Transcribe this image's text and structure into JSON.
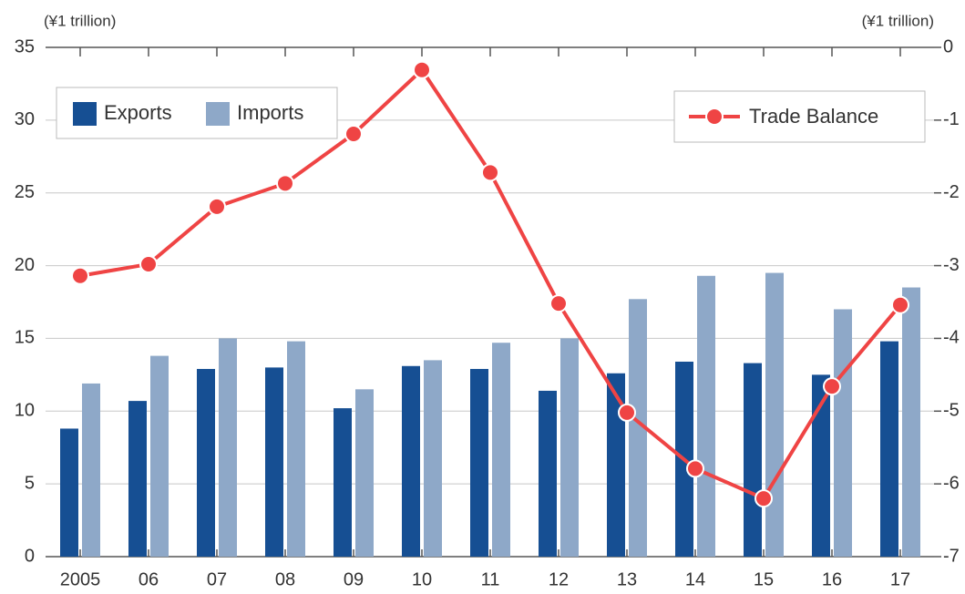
{
  "chart_data": {
    "type": "bar",
    "y_label": "(¥1 trillion)",
    "y2_label": "(¥1 trillion)",
    "categories": [
      "2005",
      "06",
      "07",
      "08",
      "09",
      "10",
      "11",
      "12",
      "13",
      "14",
      "15",
      "16",
      "17"
    ],
    "series": [
      {
        "name": "Exports",
        "color": "#164f93",
        "type": "bar",
        "values": [
          8.8,
          10.7,
          12.9,
          13.0,
          10.2,
          13.1,
          12.9,
          11.4,
          12.6,
          13.4,
          13.3,
          12.5,
          14.8
        ]
      },
      {
        "name": "Imports",
        "color": "#8ea8c8",
        "type": "bar",
        "values": [
          11.9,
          13.8,
          15.0,
          14.8,
          11.5,
          13.5,
          14.7,
          15.0,
          17.7,
          19.3,
          19.5,
          17.0,
          18.5
        ]
      },
      {
        "name": "Trade Balance",
        "color": "#ef4444",
        "type": "line",
        "axis": "y2",
        "values": [
          -3.14,
          -2.98,
          -2.19,
          -1.87,
          -1.19,
          -0.31,
          -1.72,
          -3.52,
          -5.02,
          -5.79,
          -6.2,
          -4.66,
          -3.54
        ]
      }
    ],
    "ylim": [
      0,
      35
    ],
    "yticks": [
      0,
      5,
      10,
      15,
      20,
      25,
      30,
      35
    ],
    "y2lim": [
      -7,
      0
    ],
    "y2ticks": [
      -7,
      -6,
      -5,
      -4,
      -3,
      -2,
      -1,
      0
    ],
    "grid": true
  }
}
